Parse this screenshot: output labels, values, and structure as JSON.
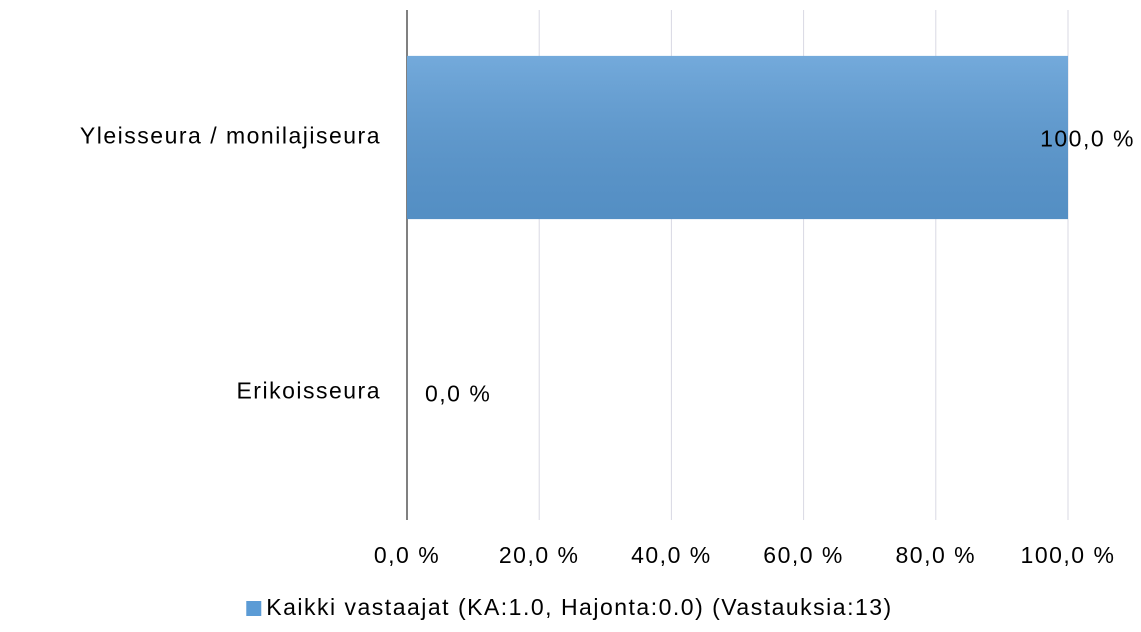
{
  "chart_data": {
    "type": "bar",
    "orientation": "horizontal",
    "categories": [
      "Yleisseura / monilajiseura",
      "Erikoisseura"
    ],
    "series": [
      {
        "name": "Kaikki vastaajat (KA:1.0, Hajonta:0.0) (Vastauksia:13)",
        "color": "#5b9bd5",
        "values": [
          100,
          0
        ],
        "value_labels": [
          "100,0 %",
          "0,0 %"
        ]
      }
    ],
    "xlim": [
      0,
      100
    ],
    "xticks": [
      {
        "value": 0,
        "label": "0,0 %"
      },
      {
        "value": 20,
        "label": "20,0 %"
      },
      {
        "value": 40,
        "label": "40,0 %"
      },
      {
        "value": 60,
        "label": "60,0 %"
      },
      {
        "value": 80,
        "label": "80,0 %"
      },
      {
        "value": 100,
        "label": "100,0 %"
      }
    ],
    "grid": true,
    "legend": "bottom"
  }
}
